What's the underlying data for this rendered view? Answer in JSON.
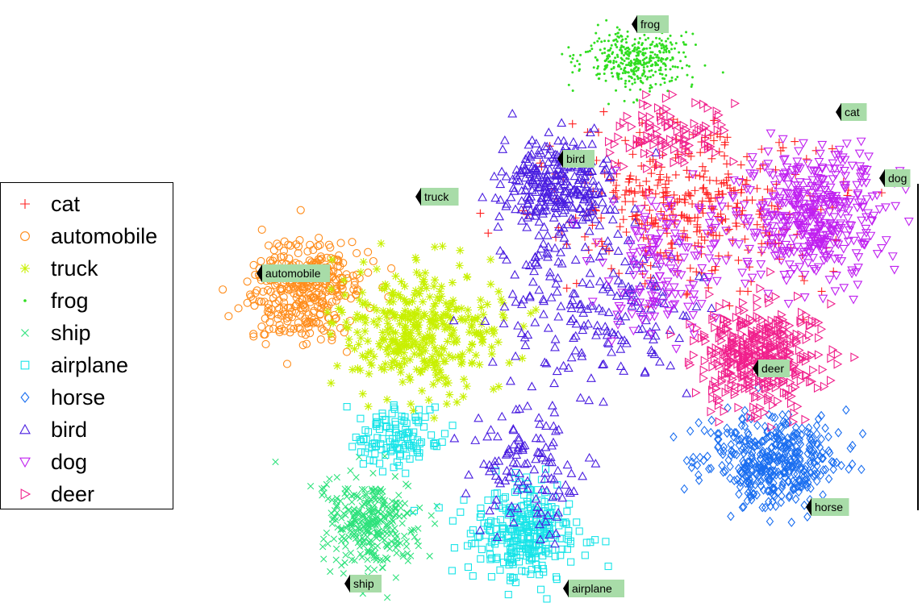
{
  "chart_data": {
    "type": "scatter",
    "title": "",
    "xlabel": "",
    "ylabel": "",
    "legend_position": "left",
    "grid": false,
    "series": [
      {
        "name": "cat",
        "marker": "plus",
        "color": "#ff2020"
      },
      {
        "name": "automobile",
        "marker": "circle",
        "color": "#ff8c1a"
      },
      {
        "name": "truck",
        "marker": "asterisk",
        "color": "#c8f000"
      },
      {
        "name": "frog",
        "marker": "dot",
        "color": "#30dd20"
      },
      {
        "name": "ship",
        "marker": "x",
        "color": "#2ee27c"
      },
      {
        "name": "airplane",
        "marker": "square",
        "color": "#18e4e8"
      },
      {
        "name": "horse",
        "marker": "diamond",
        "color": "#1a6ef0"
      },
      {
        "name": "bird",
        "marker": "triangle-up",
        "color": "#4a1ee0"
      },
      {
        "name": "dog",
        "marker": "triangle-down",
        "color": "#c020f0"
      },
      {
        "name": "deer",
        "marker": "triangle-right",
        "color": "#f0208c"
      }
    ],
    "annotations": [
      {
        "label": "frog"
      },
      {
        "label": "cat"
      },
      {
        "label": "bird"
      },
      {
        "label": "dog"
      },
      {
        "label": "truck"
      },
      {
        "label": "automobile"
      },
      {
        "label": "deer"
      },
      {
        "label": "horse"
      },
      {
        "label": "ship"
      },
      {
        "label": "airplane"
      }
    ]
  }
}
